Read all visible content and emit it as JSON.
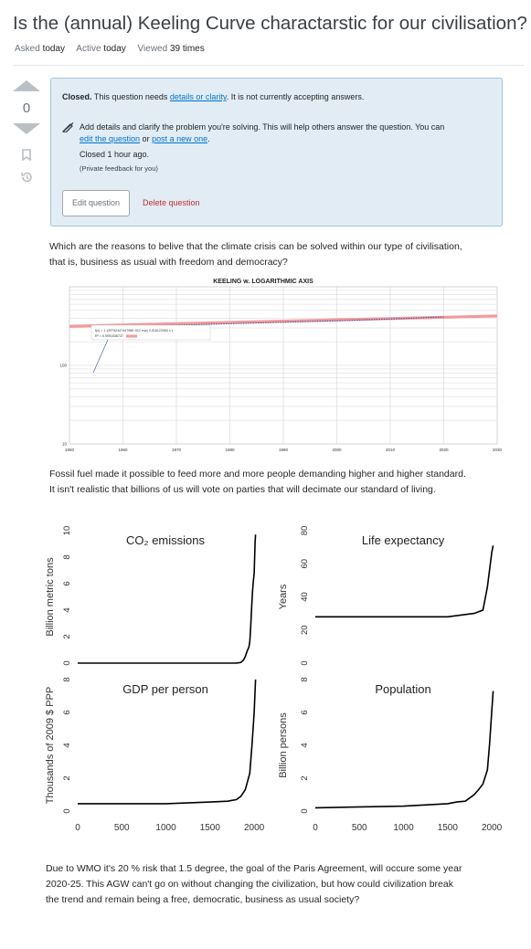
{
  "question": {
    "title": "Is the (annual) Keeling Curve charactarstic for our civilisation? |",
    "asked_label": "Asked",
    "asked_value": "today",
    "active_label": "Active",
    "active_value": "today",
    "viewed_label": "Viewed",
    "viewed_value": "39 times"
  },
  "vote": {
    "count": "0"
  },
  "notice": {
    "closed_bold": "Closed.",
    "text_before": " This question needs ",
    "details_link": "details or clarity",
    "text_after": ". It is not currently accepting answers.",
    "help_text": "Add details and clarify the problem you're solving. This will help others answer the question. You can",
    "edit_link": "edit the question",
    "or_text": " or ",
    "post_link": "post a new one",
    "period": ".",
    "closed_ago": "Closed 1 hour ago.",
    "private_feedback": "(Private feedback for you)",
    "edit_button": "Edit question",
    "delete_button": "Delete question"
  },
  "body": {
    "p1_line1": "Which are the reasons to belive that the climate crisis can be solved within our type of civilisation,",
    "p1_line2": "that is, business as usual with freedom and democracy?",
    "p2_line1": "Fossil fuel made it possible to feed more and more people demanding higher and higher standard.",
    "p2_line2": "It isn't realistic that billions of us will vote on parties that will decimate our standard of living.",
    "p3_line1": "Due to WMO it's 20 % risk that 1.5 degree, the goal of the Paris Agreement, will occure some year",
    "p3_line2": "2020-25. This AGW can't go on without changing the civilization, but how could civilization break",
    "p3_line3": "the trend and remain being a free, democratic, business as usual society?"
  },
  "colors": {
    "accent_blue": "#0074cc",
    "notice_bg": "#e1ecf4",
    "danger_red": "#c22e32",
    "fit_line": "#f4999a"
  },
  "chart_data": [
    {
      "type": "line",
      "title": "KEELING w. LOGARITHMIC AXIS",
      "ylabel": "",
      "xlabel": "",
      "x_ticks": [
        "1950",
        "1960",
        "1970",
        "1980",
        "1990",
        "2000",
        "2010",
        "2020",
        "2030"
      ],
      "y_ticks": [
        "10",
        "100"
      ],
      "y_scale": "log",
      "xlim": [
        1950,
        2030
      ],
      "legend": "top-left",
      "annotation_line1": "f(x) = 1.12979244744796E-012 exp( 0.016122063 x )",
      "annotation_line2": "R² = 0.9991536727",
      "fit_series": {
        "x": [
          1950,
          2030
        ],
        "y": [
          314,
          425
        ]
      },
      "measured_series": {
        "x": [
          1958,
          1970,
          1980,
          1990,
          2000,
          2010,
          2020
        ],
        "y": [
          315,
          325,
          339,
          354,
          369,
          389,
          413
        ]
      }
    },
    {
      "type": "line",
      "title": "CO₂ emissions",
      "ylabel": "Billion metric tons",
      "y_ticks": [
        "10",
        "8",
        "6",
        "4",
        "2",
        "0"
      ],
      "ylim": [
        0,
        10
      ],
      "x": [
        0,
        1750,
        1800,
        1850,
        1880,
        1900,
        1920,
        1940,
        1950,
        1960,
        1970,
        1980,
        1990,
        2000,
        2010,
        2015
      ],
      "values": [
        0,
        0,
        0.01,
        0.05,
        0.24,
        0.5,
        0.9,
        1.2,
        1.6,
        2.6,
        4.0,
        5.3,
        6.1,
        6.8,
        9.1,
        9.7
      ]
    },
    {
      "type": "line",
      "title": "Life expectancy",
      "ylabel": "Years",
      "y_ticks": [
        "80",
        "60",
        "40",
        "20",
        "0"
      ],
      "ylim": [
        0,
        80
      ],
      "x": [
        0,
        1500,
        1800,
        1850,
        1900,
        1950,
        2000,
        2015
      ],
      "values": [
        28,
        28,
        30,
        31,
        32,
        46,
        67,
        71
      ]
    },
    {
      "type": "line",
      "title": "GDP per person",
      "ylabel": "Thousands of 2009 $ PPP",
      "y_ticks": [
        "8",
        "6",
        "4",
        "2",
        "0"
      ],
      "ylim": [
        0,
        8
      ],
      "x_ticks": [
        "0",
        "500",
        "1000",
        "1500",
        "2000"
      ],
      "x": [
        0,
        1000,
        1500,
        1700,
        1800,
        1850,
        1900,
        1950,
        1975,
        2000,
        2015
      ],
      "values": [
        0.45,
        0.45,
        0.55,
        0.6,
        0.7,
        0.9,
        1.3,
        2.3,
        4.0,
        6.0,
        8.0
      ]
    },
    {
      "type": "line",
      "title": "Population",
      "ylabel": "Billion persons",
      "y_ticks": [
        "8",
        "6",
        "4",
        "2",
        "0"
      ],
      "ylim": [
        0,
        8
      ],
      "x_ticks": [
        "0",
        "500",
        "1000",
        "1500",
        "2000"
      ],
      "x": [
        0,
        1000,
        1500,
        1600,
        1700,
        1800,
        1850,
        1900,
        1950,
        1975,
        2000,
        2015
      ],
      "values": [
        0.2,
        0.3,
        0.45,
        0.55,
        0.6,
        1.0,
        1.3,
        1.65,
        2.5,
        4.1,
        6.1,
        7.3
      ]
    }
  ]
}
